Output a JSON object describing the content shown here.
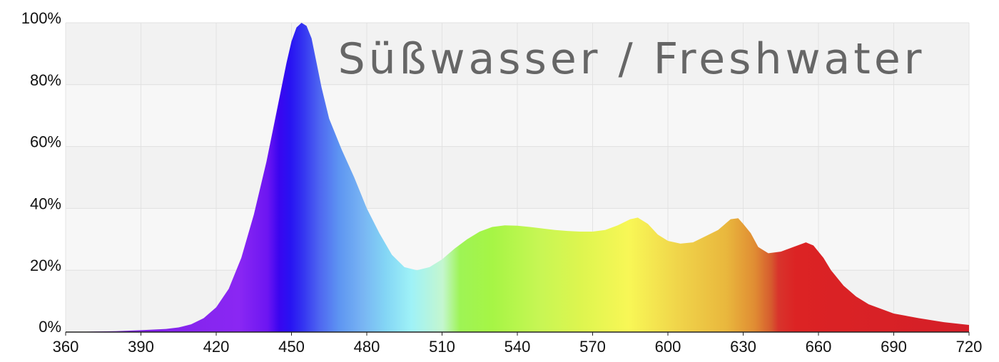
{
  "chart_data": {
    "type": "area",
    "title": "Süßwasser / Freshwater",
    "xlabel": "",
    "ylabel": "",
    "xlim": [
      360,
      720
    ],
    "ylim": [
      0,
      100
    ],
    "x_ticks": [
      "360",
      "390",
      "420",
      "450",
      "480",
      "510",
      "540",
      "570",
      "600",
      "630",
      "660",
      "690",
      "720"
    ],
    "y_ticks": [
      "0%",
      "20%",
      "40%",
      "60%",
      "80%",
      "100%"
    ],
    "grid": true,
    "fill": "visible-spectrum gradient",
    "series": [
      {
        "x": [
          360,
          380,
          390,
          400,
          405,
          410,
          415,
          420,
          425,
          430,
          435,
          440,
          445,
          448,
          450,
          452,
          454,
          456,
          458,
          460,
          462,
          465,
          470,
          475,
          480,
          485,
          490,
          495,
          500,
          505,
          510,
          515,
          520,
          525,
          530,
          535,
          540,
          545,
          550,
          555,
          560,
          565,
          570,
          575,
          580,
          585,
          588,
          592,
          596,
          600,
          605,
          610,
          615,
          620,
          625,
          628,
          630,
          633,
          636,
          640,
          645,
          650,
          655,
          658,
          662,
          665,
          670,
          675,
          680,
          685,
          690,
          700,
          710,
          720
        ],
        "values": [
          0,
          0.3,
          0.6,
          1,
          1.5,
          2.5,
          4.5,
          8,
          14,
          24,
          38,
          55,
          75,
          87,
          94,
          98.5,
          100,
          99,
          95,
          87,
          79,
          69,
          59,
          50,
          40,
          32,
          25,
          21,
          20,
          21,
          23.5,
          27,
          30,
          32.5,
          34,
          34.5,
          34.4,
          34,
          33.5,
          33,
          32.7,
          32.5,
          32.5,
          33,
          34.5,
          36.5,
          37,
          35,
          31.5,
          29.5,
          28.6,
          29,
          31,
          33,
          36.5,
          36.8,
          35,
          32,
          27.5,
          25.5,
          26,
          27.5,
          29,
          28,
          24,
          20,
          15,
          11.5,
          9,
          7.5,
          6,
          4.5,
          3.2,
          2.3
        ]
      }
    ]
  }
}
